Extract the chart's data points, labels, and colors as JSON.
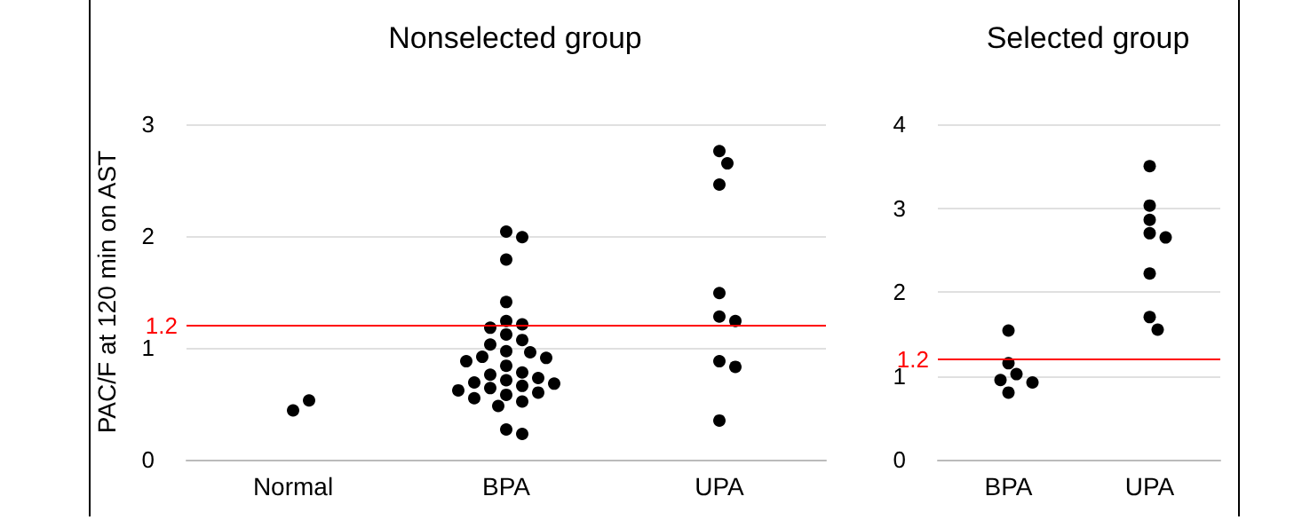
{
  "chart_data": [
    {
      "type": "scatter",
      "title": "Nonselected group",
      "ylabel": "PAC/F at 120 min on AST",
      "categories": [
        "Normal",
        "BPA",
        "UPA"
      ],
      "series": [
        {
          "color": "#000000",
          "x": [
            "Normal",
            "Normal"
          ],
          "values": [
            0.44,
            0.53
          ]
        },
        {
          "color": "#000000",
          "x": [
            "BPA",
            "BPA",
            "BPA",
            "BPA",
            "BPA",
            "BPA",
            "BPA",
            "BPA",
            "BPA",
            "BPA",
            "BPA",
            "BPA",
            "BPA",
            "BPA",
            "BPA",
            "BPA",
            "BPA",
            "BPA",
            "BPA",
            "BPA",
            "BPA",
            "BPA",
            "BPA",
            "BPA",
            "BPA",
            "BPA",
            "BPA",
            "BPA",
            "BPA",
            "BPA",
            "BPA",
            "BPA"
          ],
          "values": [
            2.04,
            1.99,
            1.79,
            1.41,
            1.24,
            1.21,
            1.18,
            1.12,
            1.07,
            1.03,
            0.97,
            0.96,
            0.92,
            0.91,
            0.88,
            0.84,
            0.78,
            0.76,
            0.73,
            0.71,
            0.69,
            0.68,
            0.66,
            0.64,
            0.62,
            0.6,
            0.58,
            0.55,
            0.52,
            0.48,
            0.27,
            0.23
          ]
        },
        {
          "color": "#000000",
          "x": [
            "UPA",
            "UPA",
            "UPA",
            "UPA",
            "UPA",
            "UPA",
            "UPA",
            "UPA",
            "UPA"
          ],
          "values": [
            2.76,
            2.65,
            2.46,
            1.49,
            1.28,
            1.24,
            0.88,
            0.83,
            0.35
          ]
        }
      ],
      "ylim": [
        0,
        3
      ],
      "yticks": [
        0,
        1,
        2,
        3
      ],
      "grid": "y",
      "marker": "circle",
      "ref_lines": [
        {
          "axis": "y",
          "value": 1.2,
          "label": "1.2",
          "color": "#ff0000"
        }
      ]
    },
    {
      "type": "scatter",
      "title": "Selected group",
      "categories": [
        "BPA",
        "UPA"
      ],
      "series": [
        {
          "color": "#000000",
          "x": [
            "BPA",
            "BPA",
            "BPA",
            "BPA",
            "BPA",
            "BPA"
          ],
          "values": [
            1.54,
            1.15,
            1.02,
            0.95,
            0.92,
            0.8
          ]
        },
        {
          "color": "#000000",
          "x": [
            "UPA",
            "UPA",
            "UPA",
            "UPA",
            "UPA",
            "UPA",
            "UPA",
            "UPA"
          ],
          "values": [
            3.5,
            3.03,
            2.86,
            2.7,
            2.65,
            2.22,
            1.7,
            1.55
          ]
        }
      ],
      "ylim": [
        0,
        4
      ],
      "yticks": [
        0,
        1,
        2,
        3,
        4
      ],
      "grid": "y",
      "marker": "circle",
      "ref_lines": [
        {
          "axis": "y",
          "value": 1.2,
          "label": "1.2",
          "color": "#ff0000"
        }
      ]
    }
  ]
}
